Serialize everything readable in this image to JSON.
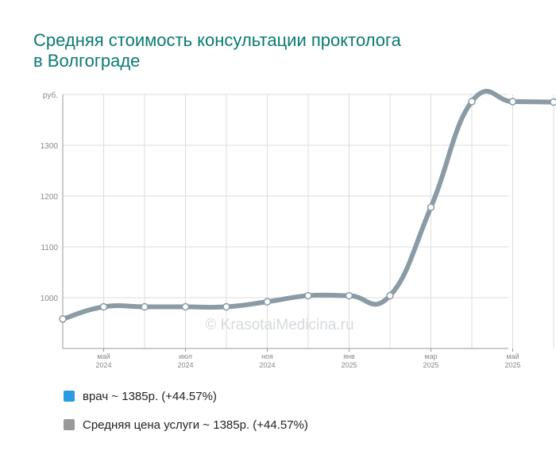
{
  "title": {
    "line1": "Средняя стоимость консультации проктолога",
    "line2": "в Волгограде"
  },
  "watermark": "© KrasotaiMedicina.ru",
  "colors": {
    "title": "#0a7a73",
    "line": "#8a9ba6",
    "grid": "#dddddd",
    "axis": "#999999",
    "legend_vrach": "#2a9be0",
    "legend_avg": "#999999"
  },
  "legend": [
    {
      "label": "врач ~ 1385р. (+44.57%)",
      "color": "#2a9be0"
    },
    {
      "label": "Средняя цена услуги ~ 1385р. (+44.57%)",
      "color": "#999999"
    }
  ],
  "chart_data": {
    "type": "line",
    "ylabel": "руб.",
    "ylim": [
      900,
      1400
    ],
    "yticks": [
      1000,
      1100,
      1200,
      1300
    ],
    "x_ticks": [
      {
        "month": "май",
        "year": "2024"
      },
      {
        "month": "июл",
        "year": "2024"
      },
      {
        "month": "ноя",
        "year": "2024"
      },
      {
        "month": "янв",
        "year": "2025"
      },
      {
        "month": "мар",
        "year": "2025"
      },
      {
        "month": "май",
        "year": "2025"
      }
    ],
    "series": [
      {
        "name": "Средняя цена услуги",
        "x": [
          "2024-04",
          "2024-05",
          "2024-06",
          "2024-07",
          "2024-08",
          "2024-09",
          "2024-10",
          "2024-11",
          "2024-12",
          "2025-01",
          "2025-02",
          "2025-03",
          "2025-04",
          "2025-05"
        ],
        "values": [
          958,
          982,
          982,
          982,
          982,
          992,
          1004,
          1004,
          1004,
          1178,
          1386,
          1386,
          1385,
          1385
        ]
      }
    ],
    "grid": true
  }
}
